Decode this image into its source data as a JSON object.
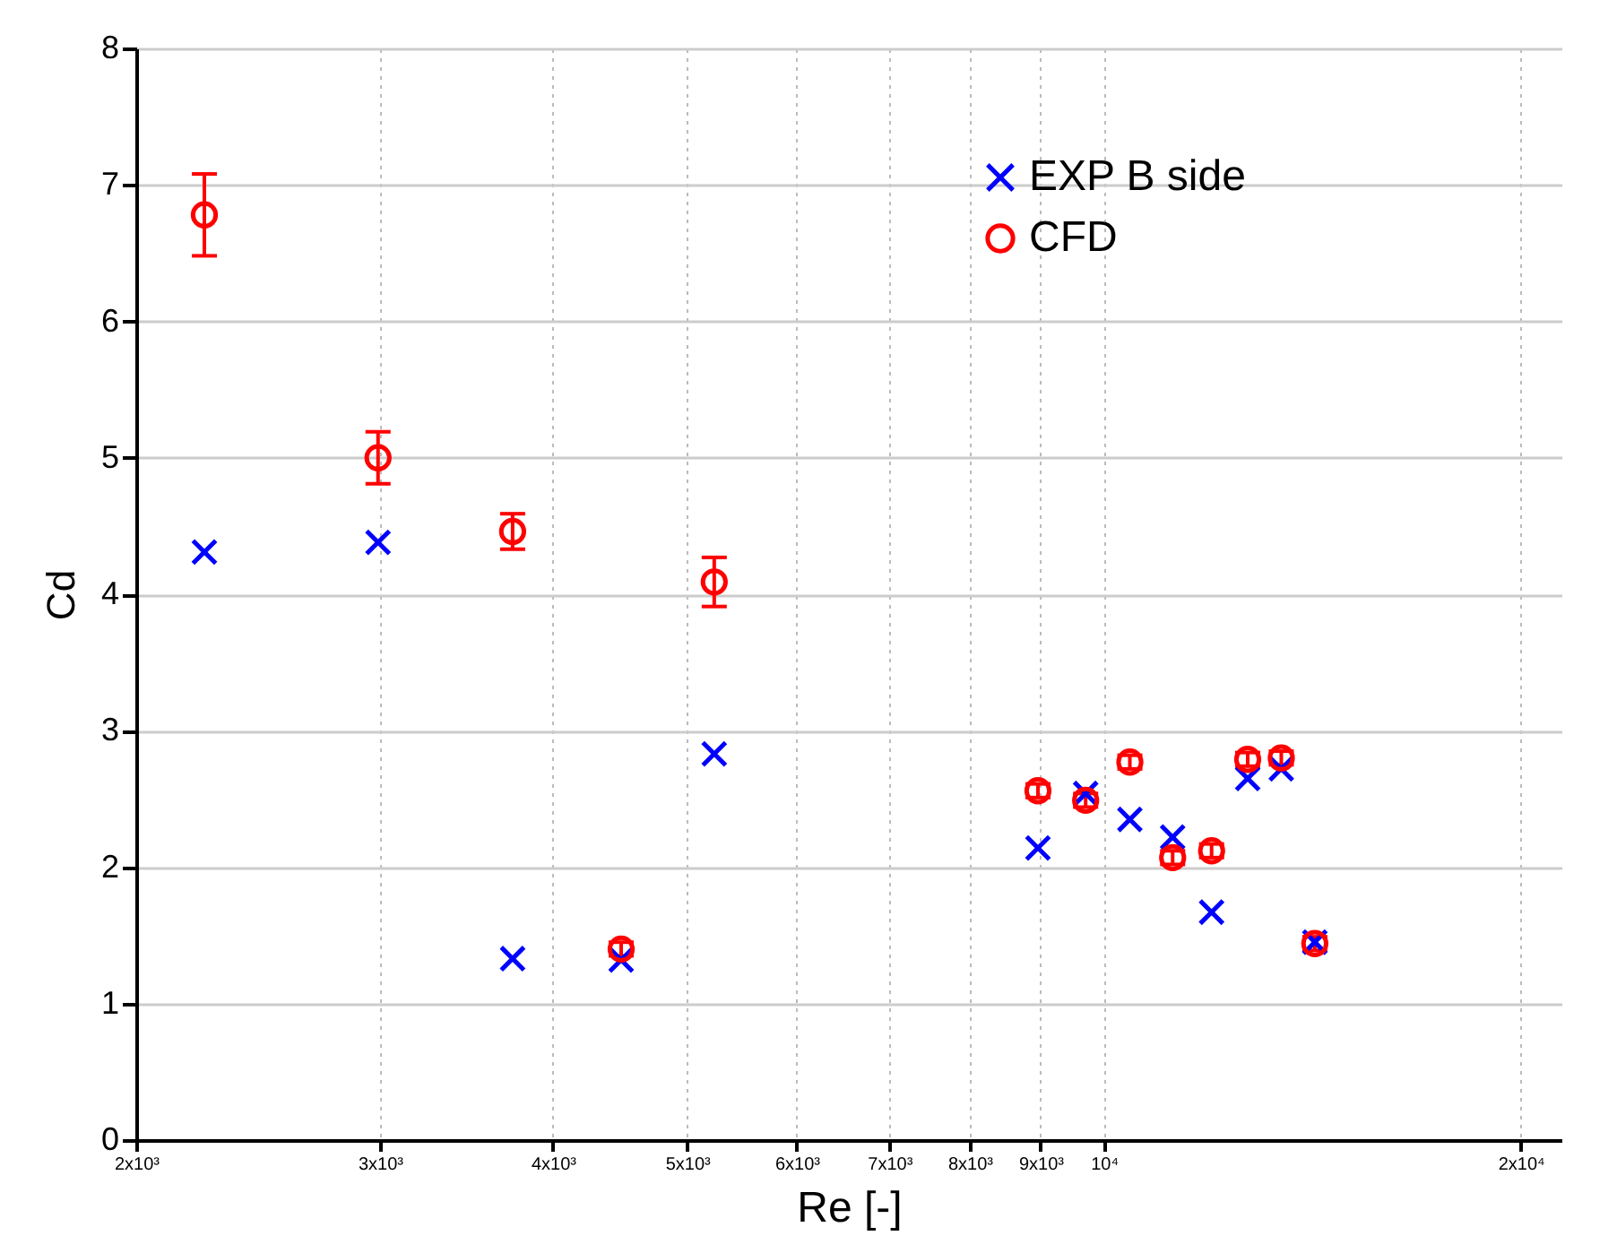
{
  "chart_data": {
    "type": "scatter",
    "xlabel": "Re [-]",
    "ylabel": "Cd",
    "x": [
      2240,
      2990,
      3740,
      4480,
      5230,
      8960,
      9700,
      10440,
      11210,
      11960,
      12700,
      13430,
      14200
    ],
    "series": [
      {
        "name": "EXP B side",
        "color": "#0000ff",
        "marker": "cross",
        "values": [
          4.31,
          4.38,
          1.33,
          1.32,
          2.83,
          2.14,
          2.54,
          2.35,
          2.22,
          1.67,
          2.65,
          2.72,
          1.45
        ]
      },
      {
        "name": "CFD",
        "color": "#ff0000",
        "marker": "circle",
        "values": [
          6.78,
          5.0,
          4.46,
          1.4,
          4.09,
          2.56,
          2.49,
          2.77,
          2.07,
          2.12,
          2.79,
          2.8,
          1.44
        ],
        "errors": [
          0.3,
          0.19,
          0.13,
          0.05,
          0.18,
          0.05,
          0.05,
          0.05,
          0.05,
          0.05,
          0.05,
          0.05,
          0.05
        ]
      }
    ],
    "log": "x",
    "xlim": [
      2000,
      21400
    ],
    "ylim": [
      0,
      8
    ],
    "xticks": [
      {
        "value": 2000,
        "label": "2x10³"
      },
      {
        "value": 3000,
        "label": "3x10³"
      },
      {
        "value": 4000,
        "label": "4x10³"
      },
      {
        "value": 5000,
        "label": "5x10³"
      },
      {
        "value": 6000,
        "label": "6x10³"
      },
      {
        "value": 7000,
        "label": "7x10³"
      },
      {
        "value": 8000,
        "label": "8x10³"
      },
      {
        "value": 9000,
        "label": "9x10³"
      },
      {
        "value": 10000,
        "label": "10⁴"
      },
      {
        "value": 20000,
        "label": "2x10⁴"
      }
    ],
    "yticks": [
      0,
      1,
      2,
      3,
      4,
      5,
      6,
      7,
      8
    ],
    "grid": true,
    "legend": "top right"
  }
}
